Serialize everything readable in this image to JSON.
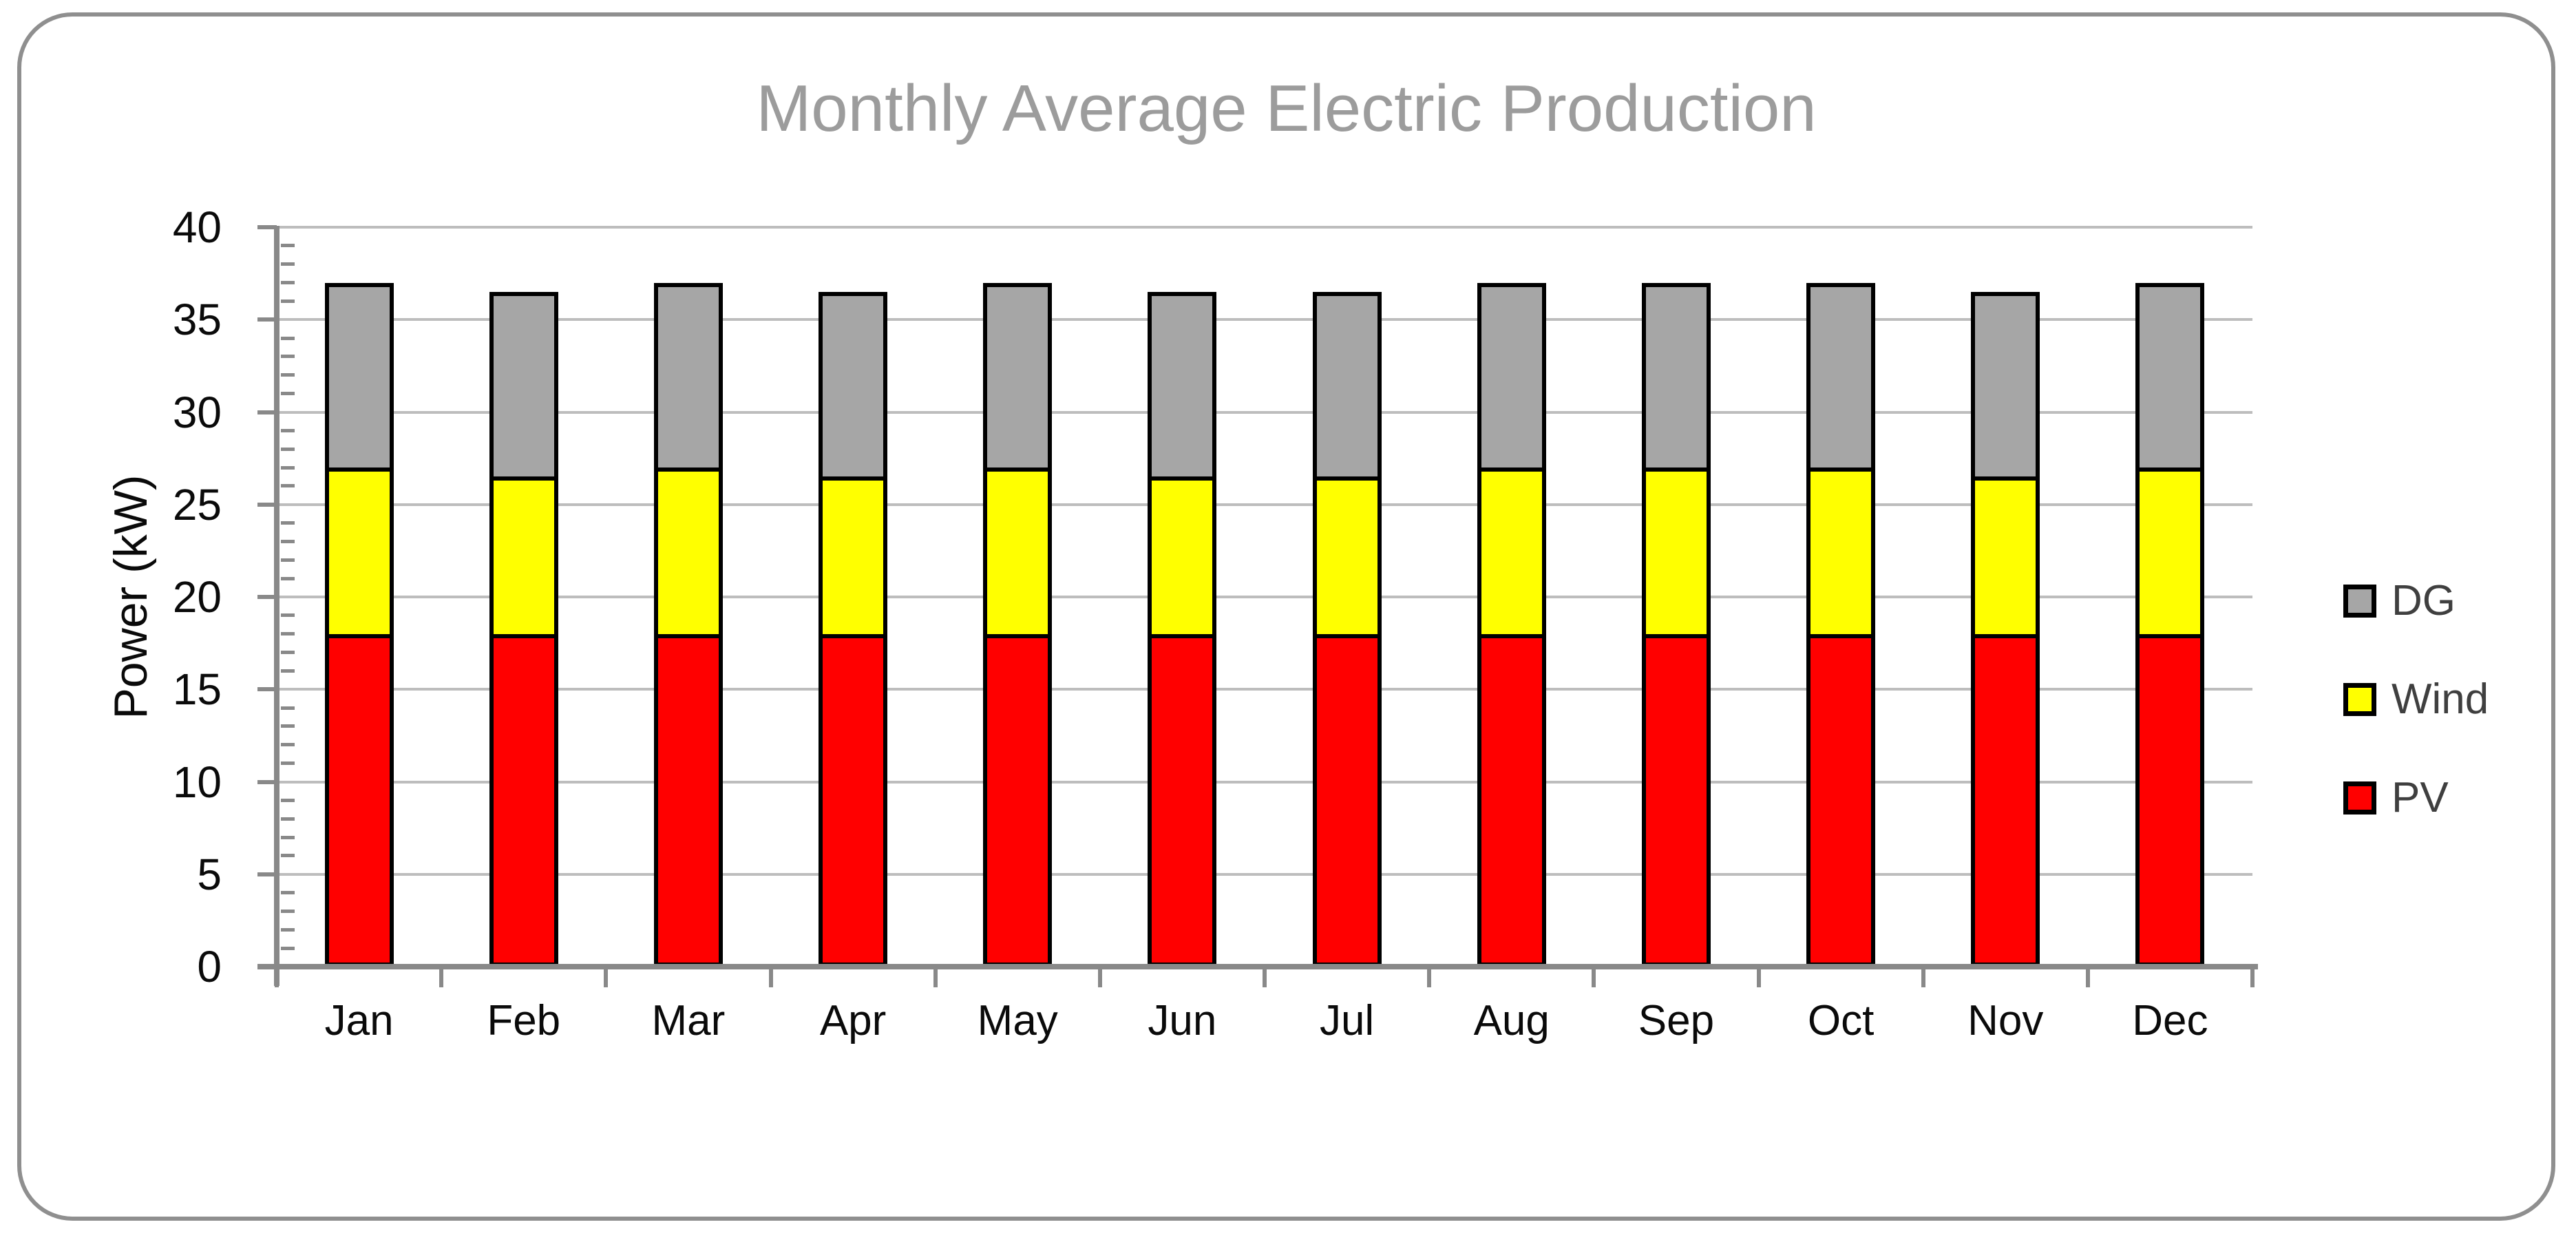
{
  "chart_data": {
    "type": "bar",
    "stacked": true,
    "title": "Monthly Average Electric Production",
    "xlabel": "",
    "ylabel": "Power (kW)",
    "categories": [
      "Jan",
      "Feb",
      "Mar",
      "Apr",
      "May",
      "Jun",
      "Jul",
      "Aug",
      "Sep",
      "Oct",
      "Nov",
      "Dec"
    ],
    "series": [
      {
        "name": "PV",
        "color": "#FF0000",
        "values": [
          18,
          18,
          18,
          18,
          18,
          18,
          18,
          18,
          18,
          18,
          18,
          18
        ]
      },
      {
        "name": "Wind",
        "color": "#FFFF00",
        "values": [
          9,
          8.5,
          9,
          8.5,
          9,
          8.5,
          8.5,
          9,
          9,
          9,
          8.5,
          9
        ]
      },
      {
        "name": "DG",
        "color": "#A6A6A6",
        "values": [
          10,
          10,
          10,
          10,
          10,
          10,
          10,
          10,
          10,
          10,
          10,
          10
        ]
      }
    ],
    "totals": [
      37,
      36.5,
      37,
      36.5,
      37,
      36.5,
      36.5,
      37,
      37,
      37,
      36.5,
      37
    ],
    "ylim": [
      0,
      40
    ],
    "yticks": [
      0,
      5,
      10,
      15,
      20,
      25,
      30,
      35,
      40
    ],
    "minor_tick_step": 1,
    "grid": true,
    "legend_position": "right",
    "legend_order": [
      "DG",
      "Wind",
      "PV"
    ],
    "colors": {
      "gridline": "#BDBDBD",
      "axis": "#898989",
      "bar_outline": "#000000",
      "title_text": "#9C9C9C",
      "axis_text": "#0A0A0A",
      "legend_text": "#3F3F3F",
      "frame_border": "#8F8F8F",
      "background": "#FFFFFF"
    }
  }
}
